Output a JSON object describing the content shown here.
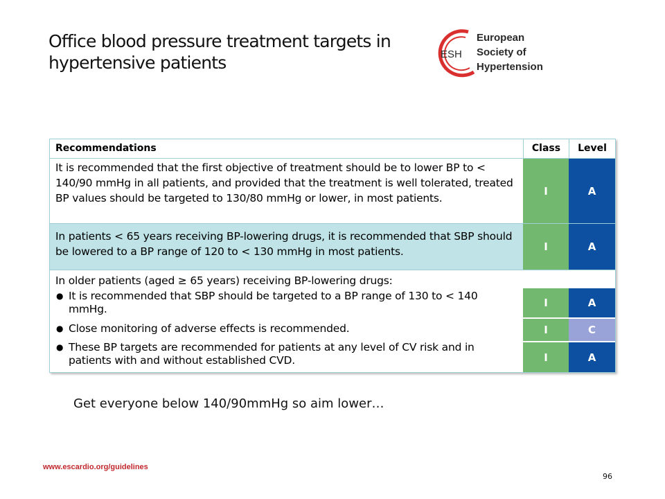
{
  "slide": {
    "title_line1": "Office blood pressure treatment targets in",
    "title_line2": "hypertensive patients",
    "logo": {
      "acronym": "ESH",
      "line1": "European",
      "line2": "Society of",
      "line3": "Hypertension",
      "colors": {
        "ring": "#d9302f",
        "text": "#2a2a2a"
      }
    },
    "table": {
      "headers": {
        "recommendations": "Recommendations",
        "class": "Class",
        "level": "Level"
      },
      "rows": [
        {
          "text": "It is recommended that the first objective of treatment should be to lower BP to < 140/90 mmHg in all patients, and provided that the treatment is well tolerated, treated BP values should be targeted to 130/80 mmHg or lower, in most patients.",
          "class": "I",
          "level": "A"
        },
        {
          "text": "In patients < 65 years receiving BP-lowering drugs, it is recommended that SBP should be lowered to a BP range of 120 to < 130 mmHg in most patients.",
          "class": "I",
          "level": "A"
        },
        {
          "intro": "In older patients (aged ≥ 65 years) receiving BP-lowering drugs:",
          "bullets": [
            {
              "text": "It is recommended that SBP should be targeted to a BP range of 130 to < 140 mmHg.",
              "class": "I",
              "level": "A"
            },
            {
              "text": "Close monitoring of adverse effects is recommended.",
              "class": "I",
              "level": "C"
            },
            {
              "text": "These BP targets are recommended for patients at any level of CV risk and in patients with and without established CVD.",
              "class": "I",
              "level": "A"
            }
          ]
        }
      ],
      "colors": {
        "class_bg": "#72b86e",
        "level_a_bg": "#0d4fa0",
        "level_c_bg": "#9aa3d8",
        "highlight_row": "#bfe3e6",
        "border": "#9ecfd4"
      }
    },
    "note": "Get everyone below 140/90mmHg so aim lower…",
    "footer_url": "www.escardio.org/guidelines",
    "page_number": "96"
  }
}
